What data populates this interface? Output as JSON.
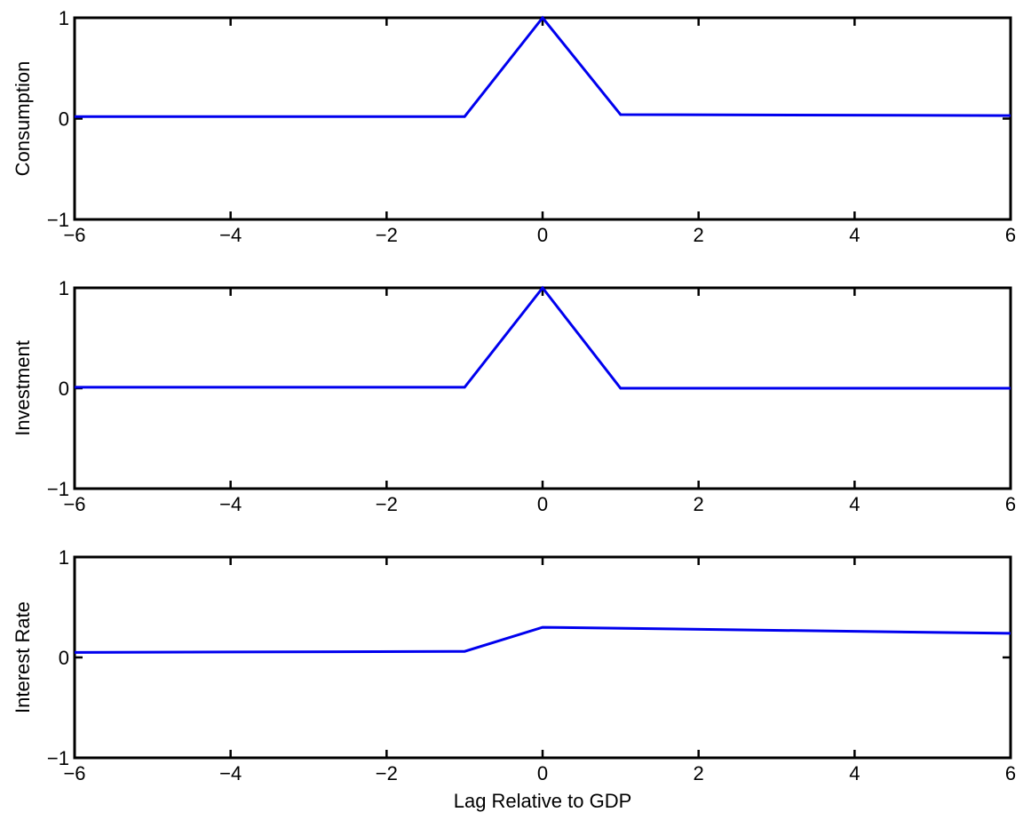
{
  "chart_data": [
    {
      "type": "line",
      "ylabel": "Consumption",
      "xlabel": "",
      "xlim": [
        -6,
        6
      ],
      "ylim": [
        -1,
        1
      ],
      "xticks": [
        "−6",
        "−4",
        "−2",
        "0",
        "2",
        "4",
        "6"
      ],
      "yticks": [
        "−1",
        "0",
        "1"
      ],
      "x": [
        -6,
        -1,
        0,
        1,
        6
      ],
      "y": [
        0.02,
        0.02,
        1.0,
        0.04,
        0.03
      ],
      "color": "#0000ee"
    },
    {
      "type": "line",
      "ylabel": "Investment",
      "xlabel": "",
      "xlim": [
        -6,
        6
      ],
      "ylim": [
        -1,
        1
      ],
      "xticks": [
        "−6",
        "−4",
        "−2",
        "0",
        "2",
        "4",
        "6"
      ],
      "yticks": [
        "−1",
        "0",
        "1"
      ],
      "x": [
        -6,
        -1,
        0,
        1,
        6
      ],
      "y": [
        0.01,
        0.01,
        1.0,
        0.0,
        0.0
      ],
      "color": "#0000ee"
    },
    {
      "type": "line",
      "ylabel": "Interest Rate",
      "xlabel": "Lag Relative to GDP",
      "xlim": [
        -6,
        6
      ],
      "ylim": [
        -1,
        1
      ],
      "xticks": [
        "−6",
        "−4",
        "−2",
        "0",
        "2",
        "4",
        "6"
      ],
      "yticks": [
        "−1",
        "0",
        "1"
      ],
      "x": [
        -6,
        -1,
        0,
        6
      ],
      "y": [
        0.05,
        0.06,
        0.3,
        0.24
      ],
      "color": "#0000ee"
    }
  ]
}
